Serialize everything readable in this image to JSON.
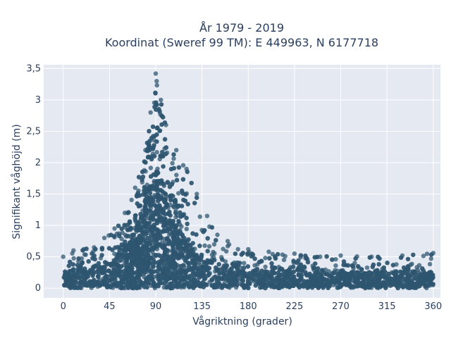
{
  "chart_data": {
    "type": "scatter",
    "title_line1": "År 1979 - 2019",
    "title_line2": "Koordinat (Sweref 99 TM): E 449963, N 6177718",
    "xlabel": "Vågriktning (grader)",
    "ylabel": "Signifikant våghöjd (m)",
    "xlim": [
      -19,
      367
    ],
    "ylim": [
      -0.155,
      3.56
    ],
    "x_ticks": [
      {
        "value": 0,
        "label": "0"
      },
      {
        "value": 45,
        "label": "45"
      },
      {
        "value": 90,
        "label": "90"
      },
      {
        "value": 135,
        "label": "135"
      },
      {
        "value": 180,
        "label": "180"
      },
      {
        "value": 225,
        "label": "225"
      },
      {
        "value": 270,
        "label": "270"
      },
      {
        "value": 315,
        "label": "315"
      },
      {
        "value": 360,
        "label": "360"
      }
    ],
    "y_ticks": [
      {
        "value": 0,
        "label": "0"
      },
      {
        "value": 0.5,
        "label": "0,5"
      },
      {
        "value": 1,
        "label": "1"
      },
      {
        "value": 1.5,
        "label": "1,5"
      },
      {
        "value": 2,
        "label": "2"
      },
      {
        "value": 2.5,
        "label": "2,5"
      },
      {
        "value": 3,
        "label": "3"
      },
      {
        "value": 3.5,
        "label": "3,5"
      }
    ],
    "grid": true,
    "marker_color": "#2f5670",
    "background_color": "#e5e9f2",
    "upper_envelope": [
      {
        "x": 0,
        "y": 0.5
      },
      {
        "x": 10,
        "y": 0.6
      },
      {
        "x": 20,
        "y": 0.62
      },
      {
        "x": 30,
        "y": 0.65
      },
      {
        "x": 40,
        "y": 0.8
      },
      {
        "x": 50,
        "y": 0.95
      },
      {
        "x": 60,
        "y": 1.2
      },
      {
        "x": 70,
        "y": 1.6
      },
      {
        "x": 80,
        "y": 2.2
      },
      {
        "x": 85,
        "y": 2.8
      },
      {
        "x": 90,
        "y": 3.42
      },
      {
        "x": 95,
        "y": 3.0
      },
      {
        "x": 100,
        "y": 2.6
      },
      {
        "x": 110,
        "y": 2.2
      },
      {
        "x": 120,
        "y": 1.9
      },
      {
        "x": 130,
        "y": 1.5
      },
      {
        "x": 140,
        "y": 1.15
      },
      {
        "x": 150,
        "y": 0.85
      },
      {
        "x": 160,
        "y": 0.75
      },
      {
        "x": 170,
        "y": 0.62
      },
      {
        "x": 180,
        "y": 0.62
      },
      {
        "x": 200,
        "y": 0.58
      },
      {
        "x": 225,
        "y": 0.55
      },
      {
        "x": 250,
        "y": 0.5
      },
      {
        "x": 270,
        "y": 0.52
      },
      {
        "x": 300,
        "y": 0.5
      },
      {
        "x": 330,
        "y": 0.52
      },
      {
        "x": 360,
        "y": 0.56
      }
    ],
    "typical_band": [
      {
        "x": 0,
        "y": 0.25
      },
      {
        "x": 45,
        "y": 0.38
      },
      {
        "x": 70,
        "y": 0.8
      },
      {
        "x": 90,
        "y": 1.9
      },
      {
        "x": 110,
        "y": 0.95
      },
      {
        "x": 135,
        "y": 0.45
      },
      {
        "x": 180,
        "y": 0.28
      },
      {
        "x": 270,
        "y": 0.25
      },
      {
        "x": 360,
        "y": 0.25
      }
    ]
  }
}
